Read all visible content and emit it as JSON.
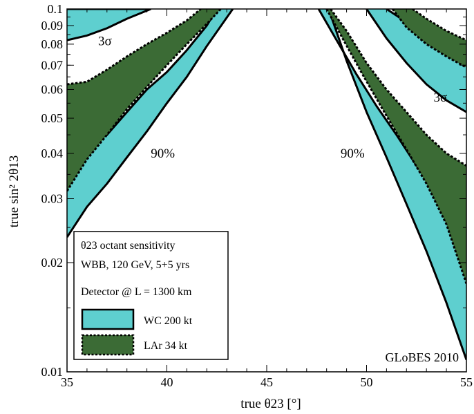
{
  "chart_data": {
    "type": "area",
    "title": "",
    "xlabel": "true θ23 [°]",
    "ylabel": "true sin² 2θ13",
    "xlim": [
      35,
      55
    ],
    "ylim": [
      0.01,
      0.1
    ],
    "yscale": "log",
    "x_ticks": [
      "35",
      "40",
      "45",
      "50",
      "55"
    ],
    "y_ticks": [
      {
        "v": 0.01,
        "label": "0.01"
      },
      {
        "v": 0.02,
        "label": "0.02"
      },
      {
        "v": 0.03,
        "label": "0.03"
      },
      {
        "v": 0.04,
        "label": "0.04"
      },
      {
        "v": 0.05,
        "label": "0.05"
      },
      {
        "v": 0.06,
        "label": "0.06"
      },
      {
        "v": 0.07,
        "label": "0.07"
      },
      {
        "v": 0.08,
        "label": "0.08"
      },
      {
        "v": 0.09,
        "label": "0.09"
      },
      {
        "v": 0.1,
        "label": "0.1"
      }
    ],
    "colors": {
      "wc": "#5ecfcf",
      "lar": "#3b6b35"
    },
    "annotations": [
      {
        "text": "3σ",
        "x": 36.9,
        "y": 0.0815
      },
      {
        "text": "3σ",
        "x": 53.7,
        "y": 0.057
      },
      {
        "text": "90%",
        "x": 39.8,
        "y": 0.04
      },
      {
        "text": "90%",
        "x": 49.3,
        "y": 0.04
      }
    ],
    "watermark": "GLoBES 2010",
    "legend": {
      "placement": "bottom-left",
      "title": "θ23 octant sensitivity",
      "line1": "WBB, 120 GeV, 5+5 yrs",
      "line2": "Detector @ L = 1300 km",
      "entries": [
        {
          "label": "WC 200 kt",
          "color": "#5ecfcf",
          "style": "solid"
        },
        {
          "label": "LAr 34  kt",
          "color": "#3b6b35",
          "style": "dotted"
        }
      ]
    },
    "series": [
      {
        "name": "WC 200 kt",
        "level": "90%",
        "side": "left",
        "color": "#5ecfcf",
        "style": "solid",
        "upper": [
          [
            35,
            0.04
          ],
          [
            36,
            0.0425
          ],
          [
            37,
            0.045
          ],
          [
            38,
            0.052
          ],
          [
            39,
            0.06
          ],
          [
            40,
            0.067
          ],
          [
            41,
            0.077
          ],
          [
            42,
            0.09
          ],
          [
            42.5,
            0.1
          ]
        ],
        "lower": [
          [
            35,
            0.0235
          ],
          [
            36,
            0.0285
          ],
          [
            37,
            0.033
          ],
          [
            38,
            0.039
          ],
          [
            39,
            0.046
          ],
          [
            40,
            0.055
          ],
          [
            41,
            0.065
          ],
          [
            42,
            0.079
          ],
          [
            43.3,
            0.1
          ]
        ]
      },
      {
        "name": "WC 200 kt",
        "level": "3σ",
        "side": "left",
        "color": "#5ecfcf",
        "style": "solid",
        "upper": [
          [
            35,
            0.1
          ],
          [
            39,
            0.1
          ]
        ],
        "lower": [
          [
            35,
            0.082
          ],
          [
            36,
            0.0845
          ],
          [
            37,
            0.0885
          ],
          [
            38,
            0.094
          ],
          [
            39.2,
            0.1
          ]
        ]
      },
      {
        "name": "LAr 34  kt",
        "level": "90%",
        "side": "left",
        "color": "#3b6b35",
        "style": "dotted",
        "upper": [
          [
            35,
            0.062
          ],
          [
            36,
            0.063
          ],
          [
            37,
            0.068
          ],
          [
            38,
            0.074
          ],
          [
            39,
            0.08
          ],
          [
            40,
            0.086
          ],
          [
            41,
            0.093
          ],
          [
            41.7,
            0.1
          ]
        ],
        "lower": [
          [
            35,
            0.0315
          ],
          [
            36,
            0.0385
          ],
          [
            37,
            0.045
          ],
          [
            38,
            0.053
          ],
          [
            39,
            0.061
          ],
          [
            40,
            0.07
          ],
          [
            41,
            0.08
          ],
          [
            42,
            0.091
          ],
          [
            42.7,
            0.1
          ]
        ]
      },
      {
        "name": "WC 200 kt",
        "level": "90%",
        "side": "right",
        "color": "#5ecfcf",
        "style": "solid",
        "upper": [
          [
            47.6,
            0.1
          ],
          [
            48.5,
            0.082
          ],
          [
            49.5,
            0.066
          ],
          [
            50.5,
            0.054
          ],
          [
            51.5,
            0.045
          ],
          [
            52.5,
            0.037
          ],
          [
            53.5,
            0.031
          ],
          [
            54.5,
            0.0265
          ],
          [
            55,
            0.025
          ]
        ],
        "lower": [
          [
            48.1,
            0.1
          ],
          [
            49,
            0.072
          ],
          [
            50,
            0.052
          ],
          [
            51,
            0.039
          ],
          [
            52,
            0.029
          ],
          [
            53,
            0.0215
          ],
          [
            54,
            0.0155
          ],
          [
            55,
            0.0108
          ]
        ]
      },
      {
        "name": "WC 200 kt",
        "level": "3σ",
        "side": "right",
        "color": "#5ecfcf",
        "style": "solid",
        "upper": [
          [
            51,
            0.1
          ],
          [
            52,
            0.092
          ],
          [
            53,
            0.085
          ],
          [
            54,
            0.08
          ],
          [
            55,
            0.076
          ]
        ],
        "lower": [
          [
            50,
            0.1
          ],
          [
            51,
            0.083
          ],
          [
            52,
            0.071
          ],
          [
            53,
            0.062
          ],
          [
            54,
            0.056
          ],
          [
            55,
            0.052
          ]
        ]
      },
      {
        "name": "LAr 34  kt",
        "level": "90%",
        "side": "right",
        "color": "#3b6b35",
        "style": "dotted",
        "upper": [
          [
            48.2,
            0.1
          ],
          [
            49,
            0.087
          ],
          [
            50,
            0.071
          ],
          [
            51,
            0.06
          ],
          [
            52,
            0.052
          ],
          [
            53,
            0.045
          ],
          [
            54,
            0.04
          ],
          [
            55,
            0.037
          ]
        ],
        "lower": [
          [
            48,
            0.1
          ],
          [
            48.8,
            0.083
          ],
          [
            49.8,
            0.066
          ],
          [
            50.8,
            0.053
          ],
          [
            52,
            0.041
          ],
          [
            53,
            0.033
          ],
          [
            54,
            0.0255
          ],
          [
            55,
            0.0175
          ]
        ]
      },
      {
        "name": "LAr 34  kt",
        "level": "3σ",
        "side": "right",
        "color": "#3b6b35",
        "style": "dotted",
        "upper": [
          [
            52.3,
            0.1
          ],
          [
            53,
            0.094
          ],
          [
            54,
            0.087
          ],
          [
            55,
            0.082
          ]
        ],
        "lower": [
          [
            51.3,
            0.1
          ],
          [
            52,
            0.089
          ],
          [
            53,
            0.08
          ],
          [
            54,
            0.074
          ],
          [
            55,
            0.069
          ]
        ]
      }
    ]
  }
}
